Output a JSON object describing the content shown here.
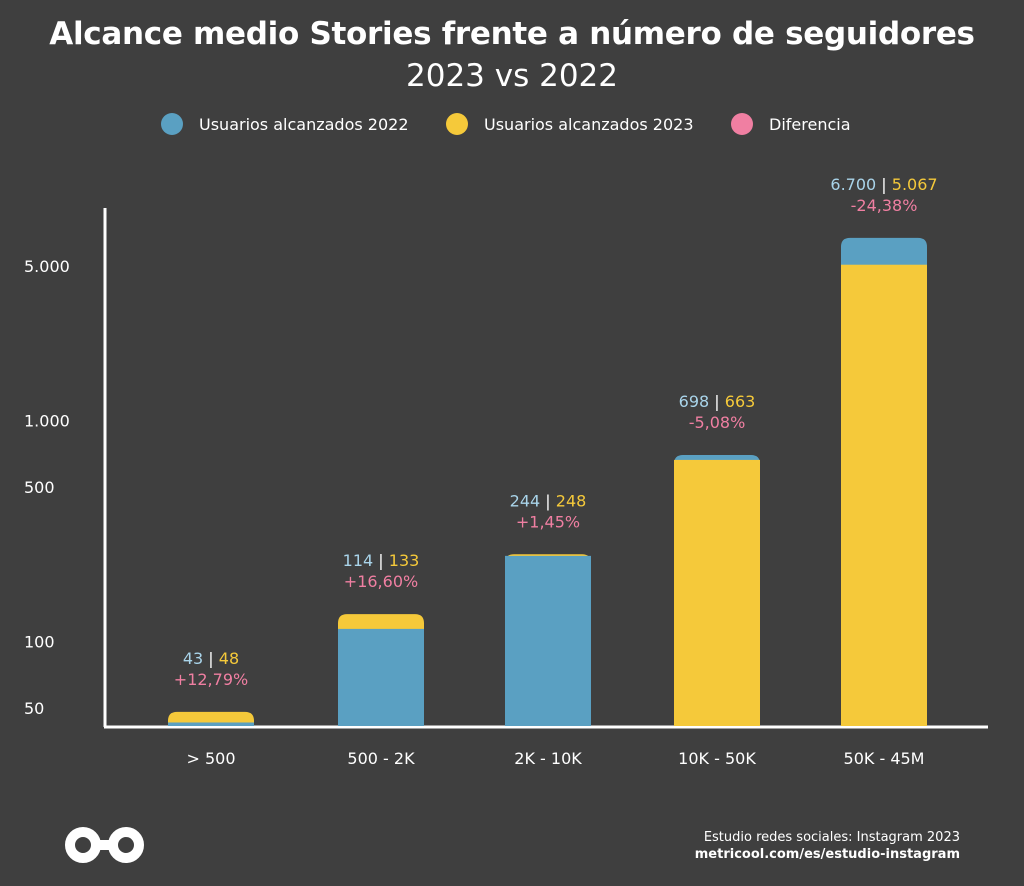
{
  "title": "Alcance medio Stories frente a número de seguidores",
  "subtitle": "2023 vs 2022",
  "legend": [
    {
      "label": "Usuarios alcanzados 2022",
      "color": "#5aa0c2"
    },
    {
      "label": "Usuarios alcanzados 2023",
      "color": "#f5c93a"
    },
    {
      "label": "Diferencia",
      "color": "#f07fa2"
    }
  ],
  "chart_data": {
    "type": "bar",
    "categories": [
      "> 500",
      "500 - 2K",
      "2K - 10K",
      "10K - 50K",
      "50K - 45M"
    ],
    "series": [
      {
        "name": "Usuarios alcanzados 2022",
        "values": [
          43,
          114,
          244,
          698,
          6700
        ],
        "color": "#5aa0c2"
      },
      {
        "name": "Usuarios alcanzados 2023",
        "values": [
          48,
          133,
          248,
          663,
          5067
        ],
        "color": "#f5c93a"
      }
    ],
    "labels_2022": [
      "43",
      "114",
      "244",
      "698",
      "6.700"
    ],
    "labels_2023": [
      "48",
      "133",
      "248",
      "663",
      "5.067"
    ],
    "differences": [
      "+12,79%",
      "+16,60%",
      "+1,45%",
      "-5,08%",
      "-24,38%"
    ],
    "difference_color": "#f07fa2",
    "y_scale": "log",
    "y_ticks": [
      50,
      100,
      500,
      1000,
      5000
    ],
    "y_tick_labels": [
      "50",
      "100",
      "500",
      "1.000",
      "5.000"
    ],
    "grid": false,
    "legend_position": "top"
  },
  "footer": {
    "credit": "Estudio redes sociales: Instagram 2023",
    "url": "metricool.com/es/estudio-instagram"
  },
  "icons": {
    "logo": "metricool-infinity-logo"
  }
}
